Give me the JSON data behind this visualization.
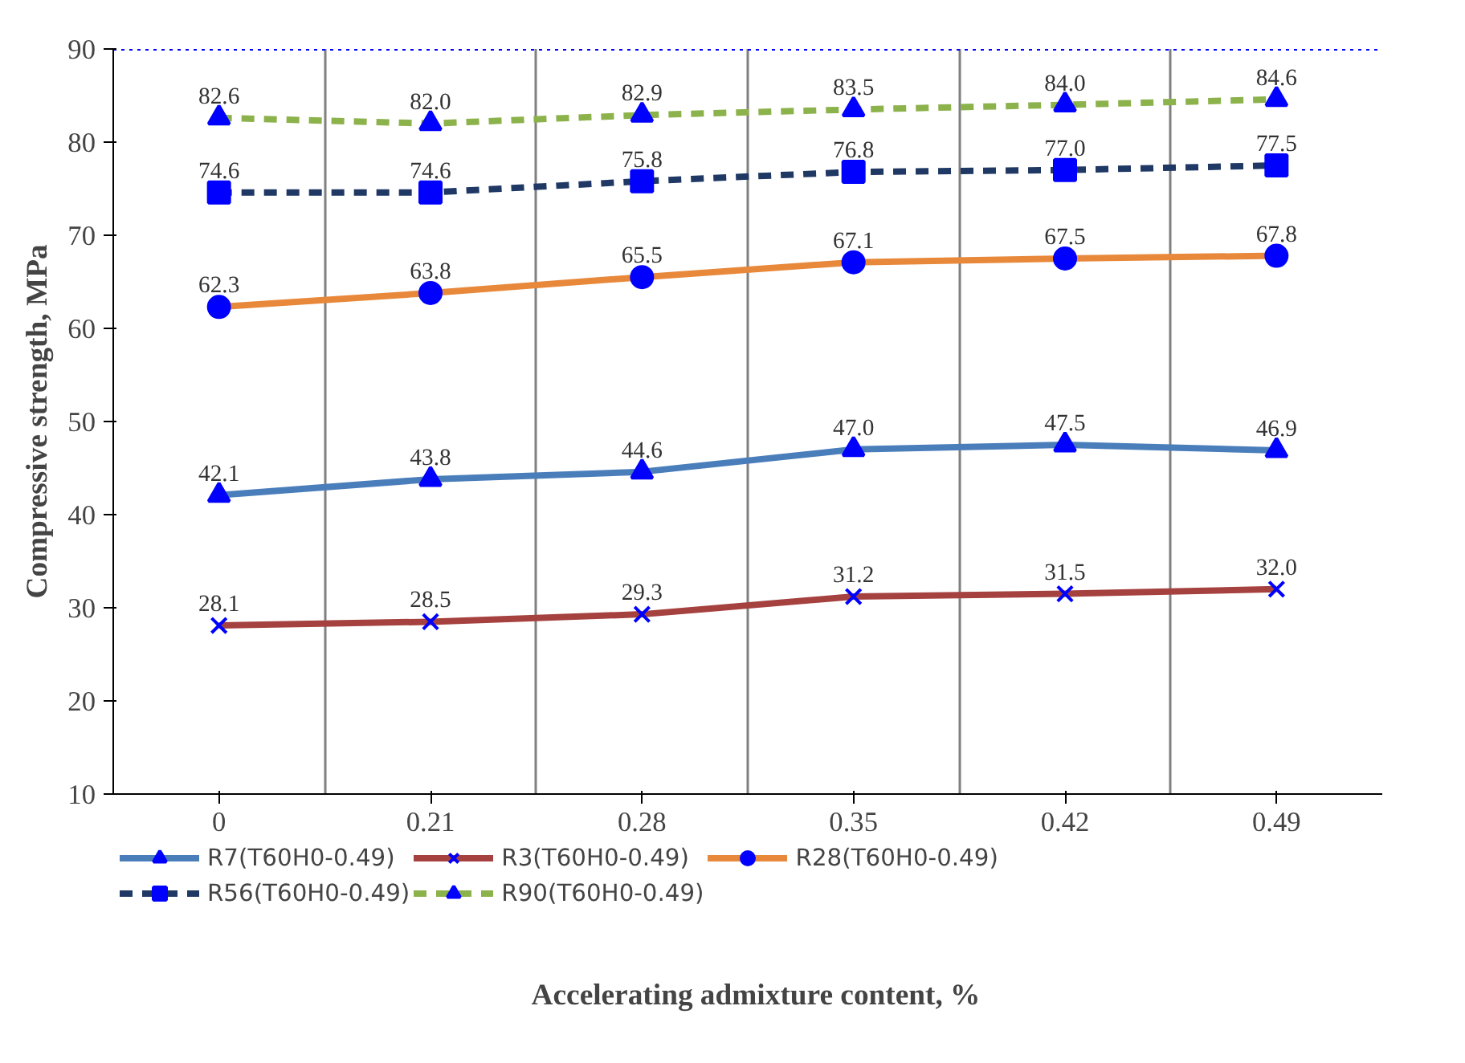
{
  "chart_data": {
    "type": "line",
    "xlabel": "Accelerating admixture content, %",
    "ylabel": "Compressive strength, MPa",
    "categories": [
      "0",
      "0.21",
      "0.28",
      "0.35",
      "0.42",
      "0.49"
    ],
    "series": [
      {
        "name": "R7(T60H0-0.49)",
        "color": "#4a7ebb",
        "marker": "triangle",
        "values": [
          42.1,
          43.8,
          44.6,
          47.0,
          47.5,
          46.9
        ],
        "value_labels": [
          "42.1",
          "43.8",
          "44.6",
          "47.0",
          "47.5",
          "46.9"
        ]
      },
      {
        "name": "R3(T60H0-0.49)",
        "color": "#a5413f",
        "marker": "cross",
        "values": [
          28.1,
          28.5,
          29.3,
          31.2,
          31.5,
          32.0
        ],
        "value_labels": [
          "28.1",
          "28.5",
          "29.3",
          "31.2",
          "31.5",
          "32.0"
        ]
      },
      {
        "name": "R28(T60H0-0.49)",
        "color": "#e8883a",
        "marker": "circle",
        "values": [
          62.3,
          63.8,
          65.5,
          67.1,
          67.5,
          67.8
        ],
        "value_labels": [
          "62.3",
          "63.8",
          "65.5",
          "67.1",
          "67.5",
          "67.8"
        ]
      },
      {
        "name": "R56(T60H0-0.49)",
        "color": "#1f3864",
        "marker": "square",
        "line_style": "dashed",
        "values": [
          74.6,
          74.6,
          75.8,
          76.8,
          77.0,
          77.5
        ],
        "value_labels": [
          "74.6",
          "74.6",
          "75.8",
          "76.8",
          "77.0",
          "77.5"
        ]
      },
      {
        "name": "R90(T60H0-0.49)",
        "color": "#8cb24b",
        "marker": "triangle",
        "line_style": "dashed",
        "values": [
          82.6,
          82.0,
          82.9,
          83.5,
          84.0,
          84.6
        ],
        "value_labels": [
          "82.6",
          "82.0",
          "82.9",
          "83.5",
          "84.0",
          "84.6"
        ]
      }
    ],
    "ylim": [
      10,
      90
    ],
    "yticks": [
      10,
      20,
      30,
      40,
      50,
      60,
      70,
      80,
      90
    ],
    "ref_lines": [
      {
        "axis": "y",
        "value": 90,
        "color": "#0000ff",
        "line_style": "dotted"
      }
    ],
    "grid": "x",
    "legend": "bottom"
  }
}
